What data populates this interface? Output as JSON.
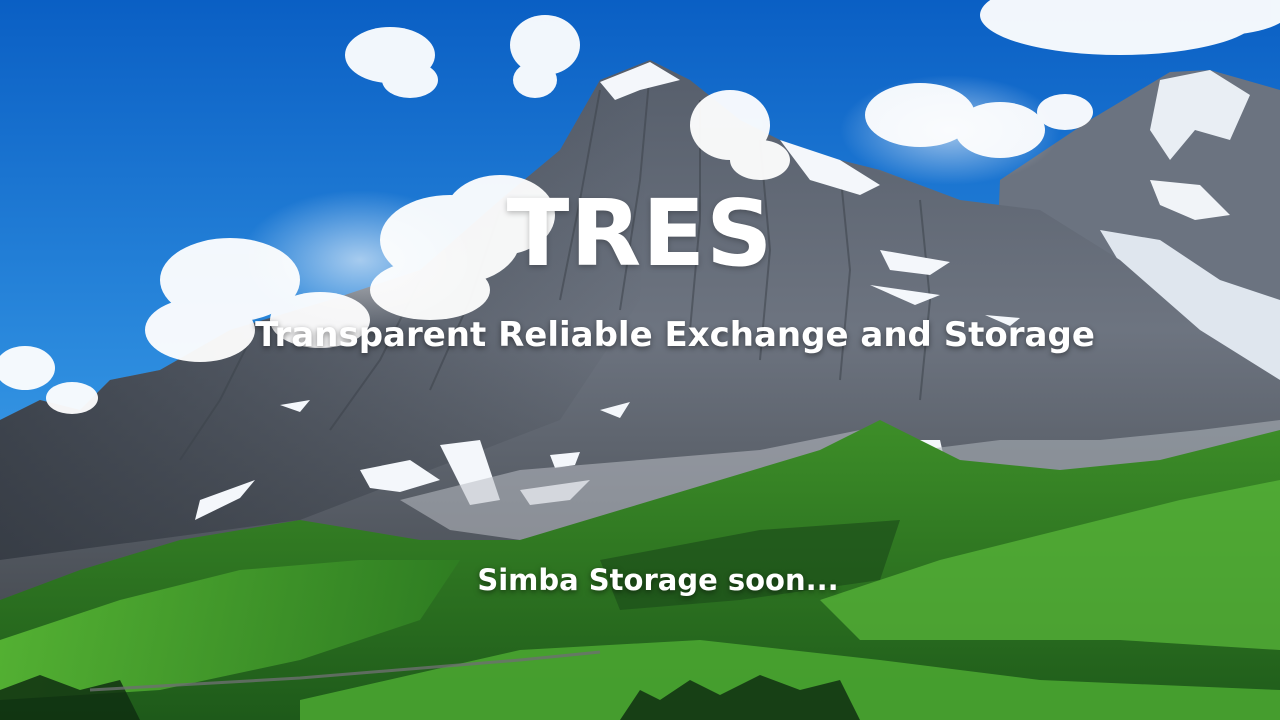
{
  "hero": {
    "title": "TRES",
    "subtitle": "Transparent Reliable Exchange and Storage",
    "tagline": "Simba Storage soon..."
  },
  "colors": {
    "sky_top": "#0a63c9",
    "sky_bottom": "#4aa3ea",
    "rock_dark": "#3b4350",
    "rock_mid": "#6b7482",
    "snow": "#f3f6fa",
    "meadow_light": "#4faa2f",
    "meadow_dark": "#1f5a1c",
    "text": "#ffffff"
  }
}
